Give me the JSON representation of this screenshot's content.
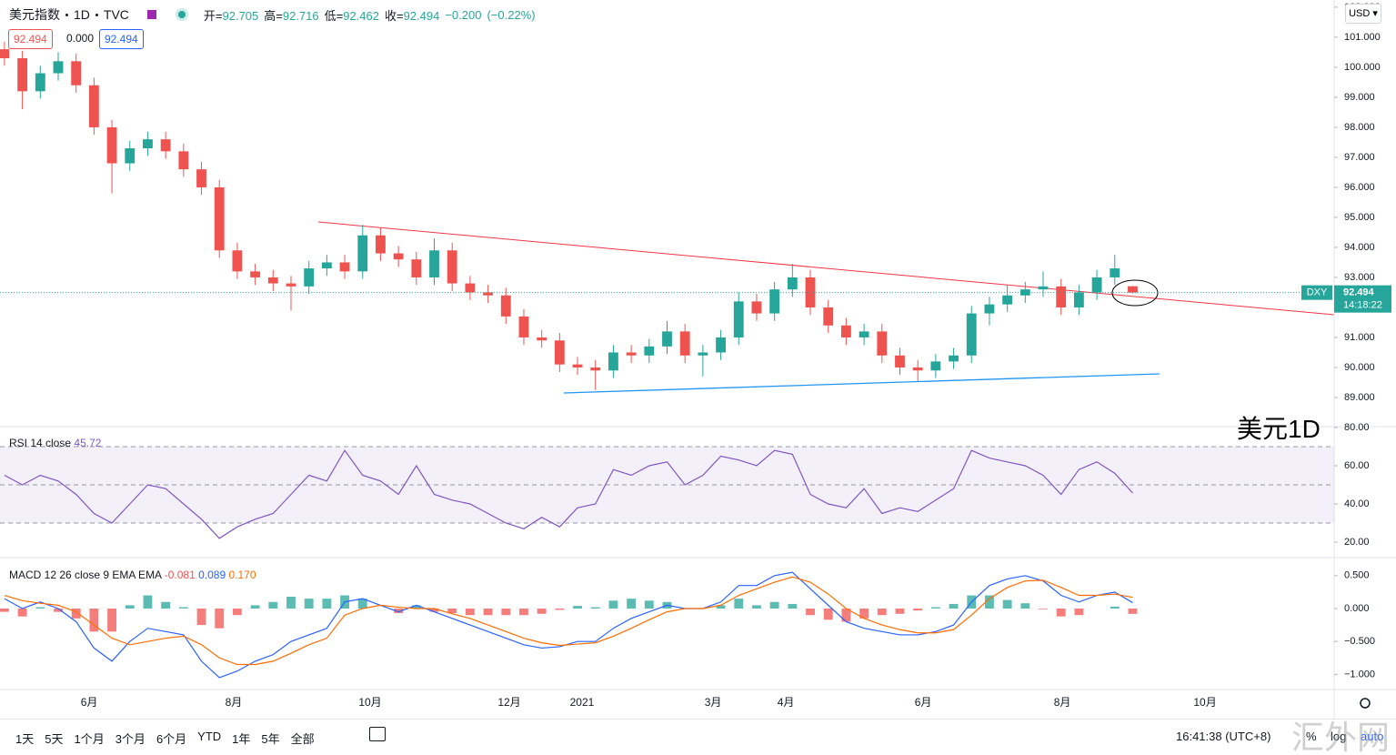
{
  "header": {
    "symbol": "美元指数",
    "interval": "1D",
    "exchange": "TVC",
    "open_label": "开=",
    "high_label": "高=",
    "low_label": "低=",
    "close_label": "收=",
    "change": "−0.200",
    "change_pct": "(−0.22%)",
    "zero": "0.000"
  },
  "currency": "USD",
  "overlay_label": "美元1D",
  "watermark": "汇外网",
  "toolbar": {
    "ranges": [
      "1天",
      "5天",
      "1个月",
      "3个月",
      "6个月",
      "YTD",
      "1年",
      "5年",
      "全部"
    ],
    "time": "16:41:38 (UTC+8)",
    "percent": "%",
    "log": "log",
    "auto": "auto"
  },
  "chart_data": [
    {
      "type": "candlestick",
      "symbol_tag": "DXY",
      "countdown": "14:18:22",
      "up_color": "#26a69a",
      "down_color": "#ef5350",
      "open": [
        100.6,
        100.3,
        99.2,
        99.8,
        100.2,
        99.4,
        98.0,
        96.8,
        97.3,
        97.6,
        97.2,
        96.6,
        96.0,
        93.9,
        93.2,
        93.0,
        92.8,
        92.7,
        93.3,
        93.5,
        93.2,
        94.4,
        93.8,
        93.6,
        93.0,
        93.9,
        92.8,
        92.5,
        92.4,
        91.7,
        91.0,
        90.9,
        90.1,
        90.0,
        89.9,
        90.5,
        90.4,
        90.7,
        91.2,
        90.4,
        90.5,
        91.0,
        92.2,
        91.8,
        92.6,
        93.0,
        92.0,
        91.4,
        91.0,
        91.2,
        90.4,
        90.0,
        89.9,
        90.2,
        90.4,
        91.8,
        92.1,
        92.4,
        92.6,
        92.7,
        92.0,
        92.5,
        93.0,
        92.705
      ],
      "high": [
        100.85,
        100.55,
        100.05,
        100.5,
        100.45,
        99.65,
        98.25,
        97.55,
        97.85,
        97.85,
        97.45,
        96.85,
        96.25,
        94.15,
        93.45,
        93.25,
        93.05,
        93.55,
        93.75,
        93.75,
        94.75,
        94.65,
        94.05,
        93.85,
        94.3,
        94.15,
        93.05,
        92.75,
        92.65,
        91.95,
        91.25,
        91.15,
        90.35,
        90.25,
        90.75,
        90.75,
        90.95,
        91.55,
        91.45,
        90.75,
        91.25,
        92.5,
        92.45,
        92.85,
        93.45,
        93.25,
        92.25,
        91.65,
        91.45,
        91.45,
        90.65,
        90.25,
        90.45,
        90.65,
        92.05,
        92.35,
        92.75,
        92.85,
        93.2,
        92.95,
        92.75,
        93.25,
        93.75,
        92.716
      ],
      "low": [
        100.05,
        98.6,
        98.95,
        99.55,
        99.15,
        97.75,
        95.8,
        96.55,
        97.05,
        96.95,
        96.35,
        95.75,
        93.65,
        92.95,
        92.75,
        92.55,
        91.9,
        92.45,
        93.05,
        92.95,
        92.95,
        93.55,
        93.35,
        92.75,
        92.75,
        92.55,
        92.25,
        92.15,
        91.45,
        90.75,
        90.65,
        89.85,
        89.75,
        89.25,
        89.65,
        90.15,
        90.15,
        90.45,
        90.15,
        89.7,
        90.25,
        90.75,
        91.55,
        91.55,
        92.35,
        91.75,
        91.15,
        90.75,
        90.75,
        90.15,
        89.75,
        89.55,
        89.65,
        89.95,
        90.15,
        91.4,
        91.85,
        92.15,
        92.35,
        91.75,
        91.75,
        92.25,
        92.75,
        92.462
      ],
      "close": [
        100.3,
        99.2,
        99.8,
        100.2,
        99.4,
        98.0,
        96.8,
        97.3,
        97.6,
        97.2,
        96.6,
        96.0,
        93.9,
        93.2,
        93.0,
        92.8,
        92.7,
        93.3,
        93.5,
        93.2,
        94.4,
        93.8,
        93.6,
        93.0,
        93.9,
        92.8,
        92.5,
        92.4,
        91.7,
        91.0,
        90.9,
        90.1,
        90.0,
        89.9,
        90.5,
        90.4,
        90.7,
        91.2,
        90.4,
        90.5,
        91.0,
        92.2,
        91.8,
        92.6,
        93.0,
        92.0,
        91.4,
        91.0,
        91.2,
        90.4,
        90.0,
        89.9,
        90.2,
        90.4,
        91.8,
        92.1,
        92.4,
        92.6,
        92.7,
        92.0,
        92.5,
        93.0,
        93.3,
        92.494
      ],
      "xlim": [
        -0.25,
        74.25
      ],
      "xticks": [
        {
          "value": 4.73,
          "label": "6月"
        },
        {
          "value": 12.8,
          "label": "8月"
        },
        {
          "value": 20.42,
          "label": "10月"
        },
        {
          "value": 28.19,
          "label": "12月"
        },
        {
          "value": 32.25,
          "label": "2021"
        },
        {
          "value": 39.57,
          "label": "3月"
        },
        {
          "value": 43.63,
          "label": "4月"
        },
        {
          "value": 51.3,
          "label": "6月"
        },
        {
          "value": 59.07,
          "label": "8月"
        },
        {
          "value": 67.04,
          "label": "10月"
        }
      ],
      "ylim": [
        88.06,
        102.24
      ],
      "yticks": [
        {
          "value": 89,
          "label": "89.000"
        },
        {
          "value": 90,
          "label": "90.000"
        },
        {
          "value": 91,
          "label": "91.000"
        },
        {
          "value": 92,
          "label": "92.000"
        },
        {
          "value": 93,
          "label": "93.000"
        },
        {
          "value": 94,
          "label": "94.000"
        },
        {
          "value": 95,
          "label": "95.000"
        },
        {
          "value": 96,
          "label": "96.000"
        },
        {
          "value": 97,
          "label": "97.000"
        },
        {
          "value": 98,
          "label": "98.000"
        },
        {
          "value": 99,
          "label": "99.000"
        },
        {
          "value": 100,
          "label": "100.000"
        },
        {
          "value": 101,
          "label": "101.000"
        },
        {
          "value": 102,
          "label": "102.000"
        }
      ]
    },
    {
      "type": "line",
      "title": "RSI 14 close",
      "color": "#7e57c2",
      "band": [
        30,
        70
      ],
      "midline": 50,
      "values": [
        55,
        50,
        55,
        52,
        45,
        35,
        30,
        40,
        50,
        48,
        40,
        32,
        22,
        28,
        32,
        35,
        45,
        55,
        52,
        68,
        55,
        52,
        45,
        60,
        45,
        42,
        40,
        35,
        30,
        27,
        33,
        28,
        38,
        40,
        58,
        55,
        60,
        62,
        50,
        55,
        65,
        63,
        60,
        68,
        66,
        45,
        40,
        38,
        48,
        35,
        38,
        36,
        42,
        48,
        68,
        64,
        62,
        60,
        55,
        45,
        58,
        62,
        56,
        45.72
      ],
      "ylim": [
        12.38,
        80
      ],
      "yticks": [
        {
          "value": 20,
          "label": "20.00"
        },
        {
          "value": 40,
          "label": "40.00"
        },
        {
          "value": 60,
          "label": "60.00"
        },
        {
          "value": 80,
          "label": "80.00"
        }
      ]
    },
    {
      "type": "macd",
      "title": "MACD 12 26 close 9 EMA EMA",
      "up_color": "#26a69a",
      "down_color": "#ef5350",
      "macd_color": "#2962ff",
      "signal_color": "#ff6d00",
      "histogram": [
        -0.05,
        -0.12,
        0.02,
        -0.05,
        -0.15,
        -0.35,
        -0.35,
        0.05,
        0.2,
        0.1,
        0.02,
        -0.25,
        -0.3,
        -0.1,
        0.05,
        0.1,
        0.18,
        0.15,
        0.15,
        0.2,
        0.15,
        0.0,
        -0.07,
        0.05,
        -0.05,
        -0.07,
        -0.1,
        -0.1,
        -0.1,
        -0.1,
        -0.08,
        -0.02,
        0.04,
        0.02,
        0.12,
        0.15,
        0.12,
        0.1,
        0,
        0,
        0.05,
        0.15,
        0.05,
        0.1,
        0.07,
        -0.1,
        -0.17,
        -0.2,
        -0.15,
        -0.1,
        -0.08,
        -0.03,
        0.02,
        0.07,
        0.2,
        0.2,
        0.13,
        0.08,
        -0.01,
        -0.12,
        -0.1,
        0,
        0.03,
        -0.081
      ],
      "macd": [
        0.15,
        0.0,
        0.1,
        0.0,
        -0.2,
        -0.6,
        -0.8,
        -0.5,
        -0.3,
        -0.35,
        -0.4,
        -0.8,
        -1.05,
        -0.95,
        -0.8,
        -0.7,
        -0.5,
        -0.4,
        -0.3,
        0.1,
        0.15,
        0.05,
        -0.05,
        0.05,
        -0.05,
        -0.15,
        -0.25,
        -0.35,
        -0.45,
        -0.55,
        -0.6,
        -0.58,
        -0.5,
        -0.5,
        -0.3,
        -0.15,
        -0.05,
        0.05,
        0.0,
        0.0,
        0.1,
        0.35,
        0.35,
        0.5,
        0.55,
        0.3,
        0.05,
        -0.2,
        -0.3,
        -0.35,
        -0.4,
        -0.4,
        -0.35,
        -0.25,
        0.1,
        0.35,
        0.45,
        0.5,
        0.42,
        0.2,
        0.1,
        0.2,
        0.25,
        0.089
      ],
      "signal": [
        0.2,
        0.12,
        0.08,
        0.05,
        -0.05,
        -0.25,
        -0.45,
        -0.55,
        -0.5,
        -0.45,
        -0.42,
        -0.55,
        -0.75,
        -0.85,
        -0.85,
        -0.8,
        -0.68,
        -0.55,
        -0.45,
        -0.1,
        0.0,
        0.05,
        0.02,
        0.0,
        0.0,
        -0.08,
        -0.15,
        -0.25,
        -0.35,
        -0.45,
        -0.52,
        -0.56,
        -0.54,
        -0.52,
        -0.42,
        -0.3,
        -0.17,
        -0.05,
        0.0,
        0.0,
        0.05,
        0.2,
        0.3,
        0.4,
        0.48,
        0.4,
        0.22,
        0.0,
        -0.15,
        -0.25,
        -0.32,
        -0.37,
        -0.37,
        -0.32,
        -0.1,
        0.15,
        0.32,
        0.42,
        0.43,
        0.32,
        0.2,
        0.2,
        0.22,
        0.17
      ],
      "signal_last_label": "0.170",
      "ylim": [
        -1.23,
        0.76
      ],
      "yticks": [
        {
          "value": 0.5,
          "label": "0.500"
        },
        {
          "value": 0,
          "label": "0.000"
        },
        {
          "value": -0.5,
          "label": "−0.500"
        },
        {
          "value": -1,
          "label": "−1.000"
        }
      ]
    }
  ]
}
